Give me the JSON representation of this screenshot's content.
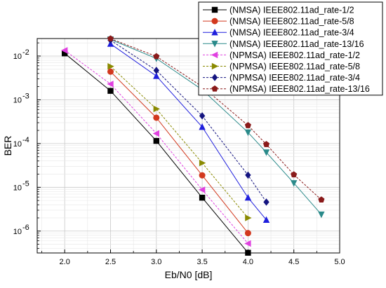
{
  "chart_data": {
    "type": "line",
    "xlabel": "Eb/N0 [dB]",
    "ylabel": "BER",
    "xlim": [
      1.7,
      5.0
    ],
    "ylim_exp": [
      -6.5,
      -1.6
    ],
    "yscale": "log",
    "grid": true,
    "legend_position": "top-right",
    "x_ticks": [
      "2.0",
      "2.5",
      "3.0",
      "3.5",
      "4.0",
      "4.5",
      "5.0"
    ],
    "y_ticks": [
      {
        "base": "10",
        "exp": "-2"
      },
      {
        "base": "10",
        "exp": "-3"
      },
      {
        "base": "10",
        "exp": "-4"
      },
      {
        "base": "10",
        "exp": "-5"
      },
      {
        "base": "10",
        "exp": "-6"
      }
    ],
    "series": [
      {
        "name": "(NMSA) IEEE802.11ad_rate-1/2",
        "color": "#000000",
        "marker": "square",
        "dashed": false,
        "x": [
          2.0,
          2.5,
          3.0,
          3.5,
          4.0
        ],
        "y": [
          0.0115,
          0.0016,
          0.000115,
          5.8e-06,
          3.2e-07
        ]
      },
      {
        "name": "(NMSA) IEEE802.11ad_rate-5/8",
        "color": "#d2381e",
        "marker": "circle",
        "dashed": false,
        "x": [
          2.5,
          3.0,
          3.5,
          4.0
        ],
        "y": [
          0.0044,
          0.00039,
          1.88e-05,
          9e-07
        ]
      },
      {
        "name": "(NMSA) IEEE802.11ad_rate-3/4",
        "color": "#1f1fdd",
        "marker": "triangle-up",
        "dashed": false,
        "x": [
          2.5,
          3.0,
          3.5,
          4.0,
          4.2
        ],
        "y": [
          0.019,
          0.0035,
          0.00024,
          5.8e-06,
          1.8e-06
        ]
      },
      {
        "name": "(NMSA) IEEE802.11ad_rate-13/16",
        "color": "#2a8a8a",
        "marker": "triangle-down",
        "dashed": false,
        "x": [
          2.5,
          3.0,
          3.5,
          4.0,
          4.2,
          4.5,
          4.8
        ],
        "y": [
          0.024,
          0.0088,
          0.0017,
          0.00018,
          6.3e-05,
          1.25e-05,
          2.4e-06
        ]
      },
      {
        "name": "(NPMSA) IEEE802.11ad_rate-1/2",
        "color": "#e040e0",
        "marker": "triangle-left",
        "dashed": true,
        "x": [
          2.0,
          2.5,
          3.0,
          3.5,
          4.0
        ],
        "y": [
          0.0135,
          0.0023,
          0.00017,
          8.8e-06,
          5.2e-07
        ]
      },
      {
        "name": "(NPMSA) IEEE802.11ad_rate-5/8",
        "color": "#8a8a00",
        "marker": "triangle-right",
        "dashed": true,
        "x": [
          2.5,
          3.0,
          3.5,
          4.0
        ],
        "y": [
          0.0058,
          0.00062,
          3.6e-05,
          2e-06
        ]
      },
      {
        "name": "(NPMSA) IEEE802.11ad_rate-3/4",
        "color": "#141480",
        "marker": "diamond",
        "dashed": true,
        "x": [
          2.5,
          3.0,
          3.5,
          4.0,
          4.2
        ],
        "y": [
          0.023,
          0.0047,
          0.00043,
          1.9e-05,
          4.6e-06
        ]
      },
      {
        "name": "(NPMSA) IEEE802.11ad_rate-13/16",
        "color": "#8a1a1a",
        "marker": "pentagon",
        "dashed": true,
        "x": [
          2.5,
          3.0,
          3.5,
          4.0,
          4.2,
          4.5,
          4.8
        ],
        "y": [
          0.025,
          0.0098,
          0.002,
          0.00026,
          9.6e-05,
          1.95e-05,
          5.2e-06
        ]
      }
    ]
  }
}
